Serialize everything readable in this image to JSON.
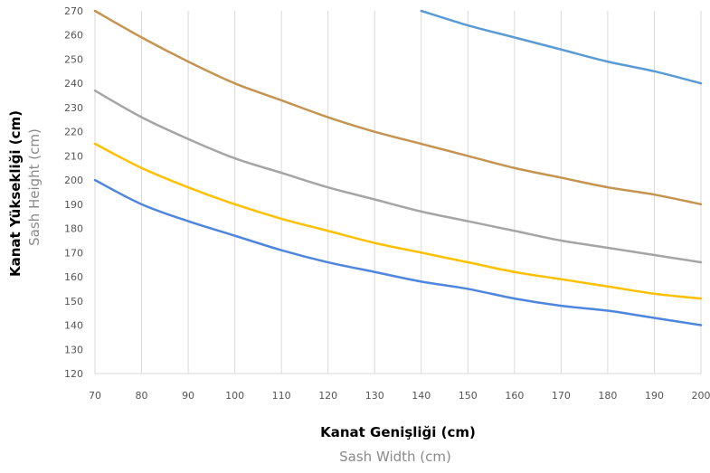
{
  "chart_data": {
    "type": "line",
    "xlabel": "Kanat Genişliği (cm)",
    "xlabel_secondary": "Sash Width  (cm)",
    "ylabel": "Kanat Yüksekliği (cm)",
    "ylabel_secondary": "Sash Height (cm)",
    "xlim": [
      70,
      200
    ],
    "ylim": [
      120,
      270
    ],
    "x_ticks": [
      70,
      80,
      90,
      100,
      110,
      120,
      130,
      140,
      150,
      160,
      170,
      180,
      190,
      200
    ],
    "y_ticks": [
      120,
      130,
      140,
      150,
      160,
      170,
      180,
      190,
      200,
      210,
      220,
      230,
      240,
      250,
      260,
      270
    ],
    "grid": "vertical",
    "x": [
      70,
      80,
      90,
      100,
      110,
      120,
      130,
      140,
      150,
      160,
      170,
      180,
      190,
      200
    ],
    "series": [
      {
        "color": "#5b9bd5",
        "values": [
          null,
          null,
          null,
          null,
          null,
          null,
          null,
          270,
          264,
          259,
          254,
          249,
          245,
          240
        ]
      },
      {
        "color": "#c59451",
        "values": [
          270,
          259,
          249,
          240,
          233,
          226,
          220,
          215,
          210,
          205,
          201,
          197,
          194,
          190
        ]
      },
      {
        "color": "#a5a5a5",
        "values": [
          237,
          226,
          217,
          209,
          203,
          197,
          192,
          187,
          183,
          179,
          175,
          172,
          169,
          166
        ]
      },
      {
        "color": "#ffc000",
        "values": [
          215,
          205,
          197,
          190,
          184,
          179,
          174,
          170,
          166,
          162,
          159,
          156,
          153,
          151
        ]
      },
      {
        "color": "#4f86dd",
        "values": [
          200,
          190,
          183,
          177,
          171,
          166,
          162,
          158,
          155,
          151,
          148,
          146,
          143,
          140
        ]
      }
    ]
  }
}
